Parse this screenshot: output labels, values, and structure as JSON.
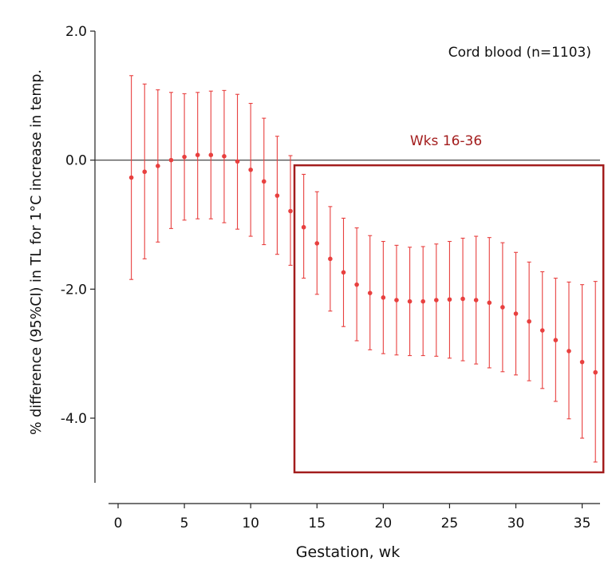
{
  "chart_data": {
    "type": "scatter",
    "annotation": "Cord blood (n=1103)",
    "highlight": {
      "label": "Wks 16-36",
      "x_range": [
        13.3,
        36.6
      ],
      "y_range": [
        -4.84,
        -0.08
      ],
      "color": "#a31d1d"
    },
    "xlabel": "Gestation, wk",
    "ylabel": "% difference (95%CI) in TL for 1°C increase in temp.",
    "xlim": [
      -0.6,
      37
    ],
    "ylim": [
      -5.0,
      2.0
    ],
    "xticks": [
      0,
      5,
      10,
      15,
      20,
      25,
      30,
      35
    ],
    "xtick_labels": [
      "0",
      "5",
      "10",
      "15",
      "20",
      "25",
      "30",
      "35"
    ],
    "yticks": [
      2.0,
      0.0,
      -2.0,
      -4.0
    ],
    "ytick_labels": [
      "2.0",
      "0.0",
      "-2.0",
      "-4.0"
    ],
    "reference_line_y": 0,
    "series_color": "#e8403f",
    "x": [
      1,
      2,
      3,
      4,
      5,
      6,
      7,
      8,
      9,
      10,
      11,
      12,
      13,
      14,
      15,
      16,
      17,
      18,
      19,
      20,
      21,
      22,
      23,
      24,
      25,
      26,
      27,
      28,
      29,
      30,
      31,
      32,
      33,
      34,
      35,
      36
    ],
    "estimate": [
      -0.27,
      -0.18,
      -0.09,
      0.0,
      0.05,
      0.08,
      0.08,
      0.06,
      -0.02,
      -0.15,
      -0.33,
      -0.55,
      -0.79,
      -1.04,
      -1.29,
      -1.53,
      -1.74,
      -1.93,
      -2.06,
      -2.13,
      -2.17,
      -2.19,
      -2.19,
      -2.17,
      -2.16,
      -2.15,
      -2.17,
      -2.21,
      -2.28,
      -2.38,
      -2.5,
      -2.64,
      -2.79,
      -2.96,
      -3.13,
      -3.29
    ],
    "lower": [
      -1.85,
      -1.53,
      -1.27,
      -1.06,
      -0.93,
      -0.91,
      -0.91,
      -0.97,
      -1.07,
      -1.18,
      -1.31,
      -1.46,
      -1.63,
      -1.83,
      -2.08,
      -2.34,
      -2.58,
      -2.8,
      -2.94,
      -3.0,
      -3.02,
      -3.03,
      -3.03,
      -3.04,
      -3.07,
      -3.11,
      -3.16,
      -3.22,
      -3.28,
      -3.33,
      -3.42,
      -3.54,
      -3.74,
      -4.01,
      -4.31,
      -4.68
    ],
    "upper": [
      1.31,
      1.18,
      1.09,
      1.05,
      1.03,
      1.05,
      1.07,
      1.08,
      1.02,
      0.88,
      0.65,
      0.37,
      0.07,
      -0.22,
      -0.49,
      -0.72,
      -0.9,
      -1.05,
      -1.17,
      -1.26,
      -1.32,
      -1.35,
      -1.34,
      -1.3,
      -1.26,
      -1.21,
      -1.18,
      -1.2,
      -1.28,
      -1.43,
      -1.58,
      -1.73,
      -1.83,
      -1.89,
      -1.93,
      -1.88
    ]
  }
}
